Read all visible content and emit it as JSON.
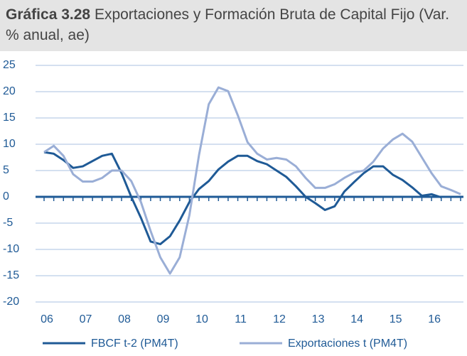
{
  "chart_data": {
    "type": "line",
    "title_number": "Gráfica 3.28",
    "title": "Exportaciones y Formación Bruta de Capital Fijo (Var. % anual, ae)",
    "categories": [
      "06",
      null,
      null,
      null,
      "07",
      null,
      null,
      null,
      "08",
      null,
      null,
      null,
      "09",
      null,
      null,
      null,
      "10",
      null,
      null,
      null,
      "11",
      null,
      null,
      null,
      "12",
      null,
      null,
      null,
      "13",
      null,
      null,
      null,
      "14",
      null,
      null,
      null,
      "15",
      null,
      null,
      null,
      "16",
      null,
      null,
      null
    ],
    "series": [
      {
        "name": "FBCF t-2 (PM4T)",
        "color": "#1f5a96",
        "values": [
          8.5,
          8.2,
          7,
          5.5,
          5.8,
          6.8,
          7.8,
          8.2,
          4.5,
          0,
          -4,
          -8.5,
          -9,
          -7.5,
          -4.5,
          -1,
          1.5,
          3,
          5.2,
          6.7,
          7.8,
          7.8,
          6.8,
          6.2,
          5,
          3.8,
          2,
          0,
          -1.2,
          -2.5,
          -1.8,
          1,
          2.8,
          4.5,
          5.8,
          5.8,
          4.2,
          3.2,
          1.8,
          0.2,
          0.5,
          -0.1,
          null,
          null
        ]
      },
      {
        "name": "Exportaciones t (PM4T)",
        "color": "#9aaed6",
        "values": [
          8.5,
          9.7,
          7.8,
          4.3,
          2.9,
          2.9,
          3.6,
          5,
          5,
          3,
          -1,
          -6.5,
          -11.5,
          -14.6,
          -11.5,
          -3.5,
          8,
          17.6,
          20.8,
          20.1,
          15.5,
          10.4,
          8.2,
          7.1,
          7.4,
          7.1,
          5.8,
          3.6,
          1.7,
          1.7,
          2.4,
          3.6,
          4.6,
          5,
          6.7,
          9.2,
          10.9,
          12,
          10.5,
          7.5,
          4.5,
          2,
          1.3,
          0.5
        ]
      }
    ],
    "ylim": [
      -20,
      25
    ],
    "yticks": [
      -20,
      -15,
      -10,
      -5,
      0,
      5,
      10,
      15,
      20,
      25
    ],
    "grid": true
  }
}
